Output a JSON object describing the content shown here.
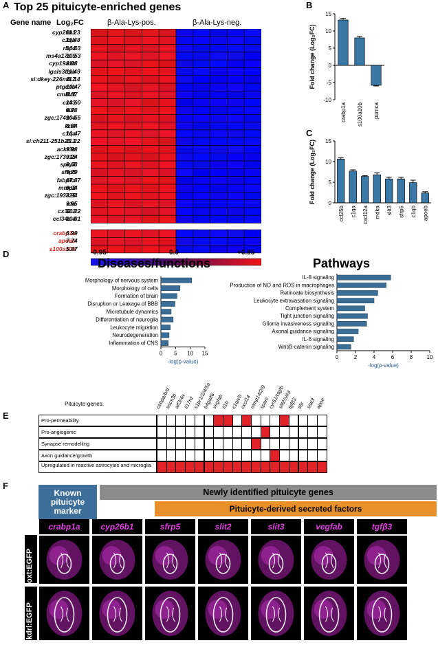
{
  "panels": {
    "a": "A",
    "b": "B",
    "c": "C",
    "d": "D",
    "e": "E",
    "f": "F"
  },
  "panel_a": {
    "title": "Top 25 pituicyte-enriched genes",
    "col_gene": "Gene name",
    "col_fc": "Log₂FC",
    "group_pos": "β-Ala-Lys-pos.",
    "group_neg": "β-Ala-Lys-neg.",
    "genes": [
      {
        "name": "cyp26b1",
        "fc": "11.23"
      },
      {
        "name": "c1qb",
        "fc": "11.48"
      },
      {
        "name": "rbp4",
        "fc": "10.63"
      },
      {
        "name": "ms4a17a.9",
        "fc": "10.53"
      },
      {
        "name": "cyp19a1b",
        "fc": "9.08"
      },
      {
        "name": "lgals3bpb",
        "fc": "11.49"
      },
      {
        "name": "si:dkey-226m8.7",
        "fc": "11.14"
      },
      {
        "name": "ptgdsb",
        "fc": "10.47"
      },
      {
        "name": "cmklr1",
        "fc": "8.37"
      },
      {
        "name": "cx43",
        "fc": "10.60"
      },
      {
        "name": "vim",
        "fc": "8.73"
      },
      {
        "name": "zgc:174904",
        "fc": "10.55"
      },
      {
        "name": "krt4",
        "fc": "8.84"
      },
      {
        "name": "c1qa",
        "fc": "10.47"
      },
      {
        "name": "si:ch211-251b21.1",
        "fc": "11.22"
      },
      {
        "name": "ackr3b",
        "fc": "9.98"
      },
      {
        "name": "zgc:173915",
        "fc": "9.24"
      },
      {
        "name": "spry4",
        "fc": "8.53"
      },
      {
        "name": "sfrp5",
        "fc": "9.79"
      },
      {
        "name": "fabp7a",
        "fc": "10.37"
      },
      {
        "name": "mmp2",
        "fc": "9.94"
      },
      {
        "name": "zgc:193725",
        "fc": "8.94"
      },
      {
        "name": "cfd",
        "fc": "9.95"
      },
      {
        "name": "cx32.2",
        "fc": "10.22"
      },
      {
        "name": "ccl34a.4",
        "fc": "10.81"
      }
    ],
    "extra_genes": [
      {
        "name": "crabp1a",
        "fc": "6.99"
      },
      {
        "name": "apoeb",
        "fc": "7.74"
      },
      {
        "name": "s100a10b",
        "fc": "5.87"
      }
    ],
    "scale": {
      "min": "-0.95",
      "mid": "0.0",
      "max": "+0.95"
    },
    "colors": {
      "pos": "#e8242a",
      "neg": "#1414f0",
      "highlight": "#d7261e"
    }
  },
  "chart_data": [
    {
      "type": "bar",
      "id": "B",
      "ylabel": "Fold change (Log₂FC)",
      "categories": [
        "crabp1a",
        "s100a10b",
        "pomca"
      ],
      "values": [
        13.2,
        8.0,
        -5.8
      ],
      "errors": [
        0.5,
        0.4,
        0.2
      ],
      "ylim": [
        -10,
        15
      ],
      "yticks": [
        "15",
        "10",
        "5",
        "0",
        "-5",
        "-10"
      ],
      "color": "#3a78a8"
    },
    {
      "type": "bar",
      "id": "C",
      "ylabel": "Fold change (Log₂FC)",
      "categories": [
        "ccl25b",
        "c1qa",
        "cxcl12a",
        "mdka",
        "slit3",
        "sfrp5",
        "c1qb",
        "apoeb"
      ],
      "values": [
        10.6,
        7.7,
        6.4,
        6.8,
        5.8,
        5.8,
        4.9,
        2.4
      ],
      "errors": [
        0.3,
        0.3,
        0.2,
        0.5,
        0.4,
        0.4,
        0.6,
        0.3
      ],
      "ylim": [
        0,
        15
      ],
      "yticks": [
        "15",
        "10",
        "5",
        "0"
      ],
      "color": "#3a78a8"
    },
    {
      "type": "bar",
      "id": "D-diseases",
      "title": "Diseases/functions",
      "xlabel": "-log(p-value)",
      "categories": [
        "Morphology of nervous system",
        "Morphology of cells",
        "Formation of brain",
        "Disruption or Leakage of BBB",
        "Microtubule dynamics",
        "Differentiation of neuroglia",
        "Leukocyte migration",
        "Neurodegeneration",
        "Inflammation of CNS"
      ],
      "values": [
        10.5,
        6.5,
        5.5,
        4.8,
        3.5,
        4.2,
        3.2,
        2.8,
        2.5
      ],
      "xlim": [
        0,
        15
      ],
      "xticks": [
        "0",
        "5",
        "10",
        "15"
      ],
      "color": "#3a6e96"
    },
    {
      "type": "bar",
      "id": "D-pathways",
      "title": "Pathways",
      "xlabel": "-log(p-value)",
      "categories": [
        "IL-8 signaling",
        "Production of NO and ROS in macrophages",
        "Retinoate biosynthesis",
        "Leukocyte extravasation signaling",
        "Complement system",
        "Tight junction signaling",
        "Glioma invasiveness signaling",
        "Axonal guidance signaling",
        "IL-6 signaling",
        "Wnt/β-catenin signaling"
      ],
      "values": [
        5.8,
        5.3,
        4.4,
        4.0,
        3.0,
        3.3,
        3.2,
        2.3,
        1.8,
        1.5
      ],
      "xlim": [
        0,
        10
      ],
      "xticks": [
        "0",
        "2",
        "4",
        "6",
        "8",
        "10"
      ],
      "color": "#3a6e96"
    }
  ],
  "panel_e": {
    "row_header": "Pituicyte-genes:",
    "genes": [
      "cebpa/b/d",
      "socs3b",
      "atf3/4a",
      "il17rd",
      "s1pr1/2/4/5a",
      "b4galt6",
      "vegfab",
      "il1b",
      "c1qa/b",
      "cxcl14",
      "mmp14/2/9",
      "sparc",
      "cyr61/ctgfb",
      "slit2/slit3",
      "tgfβ3",
      "il6r",
      "stat3",
      "apoe"
    ],
    "rows": [
      {
        "label": "Pro-permeability",
        "on": [
          6,
          7,
          9,
          13
        ]
      },
      {
        "label": "Pro-angiogenic",
        "on": [
          11
        ]
      },
      {
        "label": "Synapse remodelling",
        "on": [
          10
        ]
      },
      {
        "label": "Axon guidance/growth",
        "on": [
          12
        ]
      },
      {
        "label": "Upregulated in reactive astrocytes and microglia",
        "on": [
          0,
          1,
          2,
          3,
          4,
          5,
          6,
          7,
          8,
          9,
          10,
          11,
          12,
          13,
          14,
          15,
          16,
          17
        ]
      }
    ]
  },
  "panel_f": {
    "known_marker": "Known pituicyte marker",
    "newly": "Newly identified pituicyte genes",
    "secreted": "Pituicyte-derived secreted factors",
    "genes": [
      "crabp1a",
      "cyp26b1",
      "sfrp5",
      "slit2",
      "slit3",
      "vegfab",
      "tgfβ3"
    ],
    "row1": "oxt:EGFP",
    "row2": "kdrl:EGFP",
    "colors": {
      "known_bg": "#3e6f9a",
      "newly_bg": "#8c8c8c",
      "secreted_bg": "#e8912a",
      "magenta": "#e040e0"
    }
  }
}
